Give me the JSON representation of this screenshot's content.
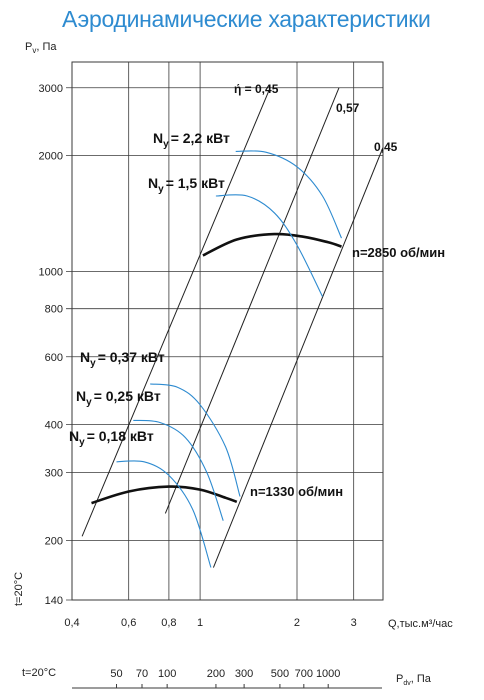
{
  "colors": {
    "title": "#2e8bd0",
    "curve": "#2e8bd0",
    "grid": "#3a3a3a",
    "text": "#111111"
  },
  "chart_data": {
    "type": "line",
    "title": "Аэродинамические характеристики",
    "ylabel": "Pᵥ, Па",
    "ylabel_main": "P",
    "ylabel_sub": "v",
    "ylabel_unit": ", Па",
    "xlabel": "Q,тыс.м³/час",
    "x_scale": "log",
    "y_scale": "log",
    "xlim": [
      0.4,
      3.7
    ],
    "ylim": [
      140,
      3500
    ],
    "grid": true,
    "x_ticks": [
      {
        "value": 0.4,
        "label": "0,4"
      },
      {
        "value": 0.6,
        "label": "0,6"
      },
      {
        "value": 0.8,
        "label": "0,8"
      },
      {
        "value": 1,
        "label": "1"
      },
      {
        "value": 2,
        "label": "2"
      },
      {
        "value": 3,
        "label": "3"
      }
    ],
    "y_ticks": [
      {
        "value": 140,
        "label": "140"
      },
      {
        "value": 200,
        "label": "200"
      },
      {
        "value": 300,
        "label": "300"
      },
      {
        "value": 400,
        "label": "400"
      },
      {
        "value": 600,
        "label": "600"
      },
      {
        "value": 800,
        "label": "800"
      },
      {
        "value": 1000,
        "label": "1000"
      },
      {
        "value": 2000,
        "label": "2000"
      },
      {
        "value": 3000,
        "label": "3000"
      }
    ],
    "side_label": "t=20°C",
    "bottom_scale": {
      "label_left": "t=20°C",
      "label_right_main": "P",
      "label_right_sub": "dv",
      "label_right_unit": ", Па",
      "ticks": [
        {
          "q": 0.55,
          "label": "50"
        },
        {
          "q": 0.66,
          "label": "70"
        },
        {
          "q": 0.79,
          "label": "100"
        },
        {
          "q": 1.12,
          "label": "200"
        },
        {
          "q": 1.37,
          "label": "300"
        },
        {
          "q": 1.77,
          "label": "500"
        },
        {
          "q": 2.1,
          "label": "700"
        },
        {
          "q": 2.5,
          "label": "1000"
        }
      ]
    },
    "efficiency_lines": [
      {
        "label": "ή = 0,45",
        "points": [
          [
            0.43,
            205
          ],
          [
            1.65,
            3000
          ]
        ]
      },
      {
        "label": "0,57",
        "points": [
          [
            0.78,
            235
          ],
          [
            2.7,
            3000
          ]
        ]
      },
      {
        "label": "0,45",
        "points": [
          [
            1.1,
            170
          ],
          [
            3.7,
            2100
          ]
        ]
      }
    ],
    "series": [
      {
        "name": "n=2850 об/мин",
        "values": [
          [
            1.02,
            1100
          ],
          [
            1.3,
            1210
          ],
          [
            1.7,
            1250
          ],
          [
            2.1,
            1230
          ],
          [
            2.5,
            1190
          ],
          [
            2.75,
            1160
          ]
        ]
      },
      {
        "name": "n=1330 об/мин",
        "values": [
          [
            0.46,
            250
          ],
          [
            0.6,
            268
          ],
          [
            0.8,
            276
          ],
          [
            1.0,
            271
          ],
          [
            1.2,
            258
          ],
          [
            1.3,
            252
          ]
        ]
      },
      {
        "name": "Ny = 2,2 кВт",
        "values": [
          [
            1.29,
            2050
          ],
          [
            1.6,
            2040
          ],
          [
            2.0,
            1870
          ],
          [
            2.4,
            1570
          ],
          [
            2.75,
            1220
          ]
        ]
      },
      {
        "name": "Ny = 1,5 кВт",
        "values": [
          [
            1.12,
            1570
          ],
          [
            1.4,
            1570
          ],
          [
            1.7,
            1420
          ],
          [
            2.0,
            1170
          ],
          [
            2.4,
            860
          ]
        ]
      },
      {
        "name": "Ny = 0,37 кВт",
        "values": [
          [
            0.7,
            510
          ],
          [
            0.85,
            500
          ],
          [
            1.0,
            450
          ],
          [
            1.2,
            350
          ],
          [
            1.33,
            260
          ]
        ]
      },
      {
        "name": "Ny = 0,25 кВт",
        "values": [
          [
            0.62,
            410
          ],
          [
            0.75,
            405
          ],
          [
            0.9,
            370
          ],
          [
            1.05,
            300
          ],
          [
            1.18,
            225
          ]
        ]
      },
      {
        "name": "Ny = 0,18 кВт",
        "values": [
          [
            0.55,
            320
          ],
          [
            0.67,
            320
          ],
          [
            0.8,
            295
          ],
          [
            0.95,
            240
          ],
          [
            1.08,
            170
          ]
        ]
      }
    ],
    "annotations": [
      {
        "prefix": "N",
        "sub": "y",
        "value": "= 2,2 кВт"
      },
      {
        "prefix": "N",
        "sub": "y",
        "value": "= 1,5 кВт"
      },
      {
        "prefix": "N",
        "sub": "y",
        "value": "= 0,37 кВт"
      },
      {
        "prefix": "N",
        "sub": "y",
        "value": "= 0,25 кВт"
      },
      {
        "prefix": "N",
        "sub": "y",
        "value": "= 0,18 кВт"
      }
    ]
  }
}
